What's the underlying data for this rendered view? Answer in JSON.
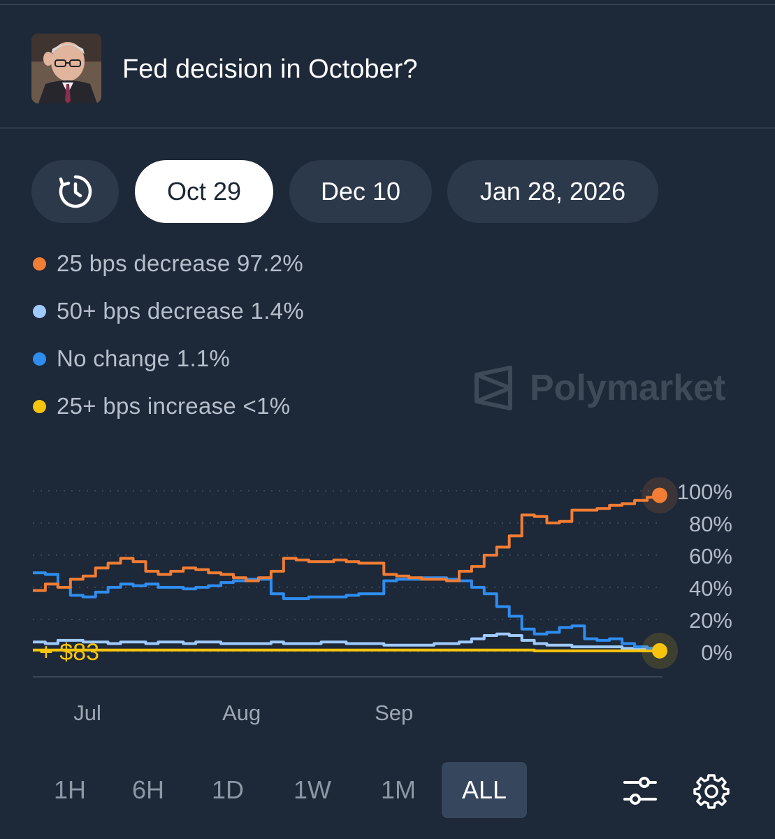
{
  "header": {
    "title": "Fed decision in October?"
  },
  "date_tabs": [
    {
      "icon": "history-clock-icon"
    },
    {
      "label": "Oct 29",
      "active": true
    },
    {
      "label": "Dec 10",
      "active": false
    },
    {
      "label": "Jan 28, 2026",
      "active": false
    }
  ],
  "legend": [
    {
      "label": "25 bps decrease 97.2%",
      "color": "#f27d34"
    },
    {
      "label": "50+ bps decrease 1.4%",
      "color": "#9fcaff"
    },
    {
      "label": "No change 1.1%",
      "color": "#2f8df0"
    },
    {
      "label": "25+ bps increase <1%",
      "color": "#f6c40c"
    }
  ],
  "watermark": {
    "text": "Polymarket"
  },
  "chart_data": {
    "type": "line",
    "x_ticks": [
      "Jul",
      "Aug",
      "Sep"
    ],
    "y_ticks": [
      "100%",
      "80%",
      "60%",
      "40%",
      "20%",
      "0%"
    ],
    "ylim": [
      0,
      100
    ],
    "annotation": "+ $83",
    "series": [
      {
        "name": "25 bps decrease",
        "color": "#f27d34",
        "values": [
          38,
          42,
          40,
          45,
          47,
          52,
          55,
          58,
          56,
          50,
          48,
          50,
          52,
          51,
          49,
          48,
          46,
          44,
          46,
          50,
          58,
          57,
          56,
          56,
          57,
          56,
          55,
          55,
          48,
          47,
          46,
          45,
          45,
          44,
          50,
          53,
          60,
          65,
          72,
          85,
          84,
          80,
          81,
          88,
          88,
          89,
          91,
          92,
          94,
          96,
          97.2
        ]
      },
      {
        "name": "50+ bps decrease",
        "color": "#9fcaff",
        "values": [
          6,
          5,
          7,
          7,
          6,
          6,
          5,
          6,
          6,
          5,
          6,
          6,
          5,
          6,
          6,
          5,
          5,
          5,
          5,
          6,
          5,
          5,
          5,
          6,
          6,
          5,
          5,
          5,
          4,
          4,
          4,
          4,
          5,
          5,
          6,
          8,
          10,
          11,
          10,
          7,
          5,
          4,
          4,
          3,
          3,
          3,
          3,
          2,
          2,
          2,
          1.4
        ]
      },
      {
        "name": "No change",
        "color": "#2f8df0",
        "values": [
          49,
          48,
          40,
          35,
          34,
          37,
          40,
          42,
          41,
          42,
          40,
          40,
          39,
          40,
          41,
          43,
          44,
          45,
          45,
          36,
          33,
          33,
          34,
          34,
          34,
          35,
          36,
          36,
          44,
          45,
          45,
          46,
          46,
          45,
          44,
          40,
          36,
          28,
          22,
          14,
          11,
          12,
          15,
          16,
          8,
          7,
          8,
          5,
          3,
          2,
          1.1
        ]
      },
      {
        "name": "25+ bps increase",
        "color": "#f6c40c",
        "values": [
          1,
          1,
          1,
          1,
          1,
          1,
          1,
          1,
          1,
          1,
          1,
          1,
          1,
          1,
          1,
          1,
          1,
          1,
          1,
          1,
          1,
          1,
          1,
          1,
          1,
          1,
          1,
          1,
          1,
          1,
          1,
          1,
          1,
          1,
          1,
          1,
          1,
          1,
          1,
          1,
          0.5,
          0.5,
          0.5,
          0.5,
          0.5,
          0.5,
          0.5,
          0.5,
          0.5,
          0.5,
          0.5
        ]
      }
    ]
  },
  "time_tabs": [
    {
      "label": "1H",
      "active": false
    },
    {
      "label": "6H",
      "active": false
    },
    {
      "label": "1D",
      "active": false
    },
    {
      "label": "1W",
      "active": false
    },
    {
      "label": "1M",
      "active": false
    },
    {
      "label": "ALL",
      "active": true
    }
  ],
  "tools": {
    "filter_icon": "sliders-icon",
    "settings_icon": "gear-icon"
  }
}
